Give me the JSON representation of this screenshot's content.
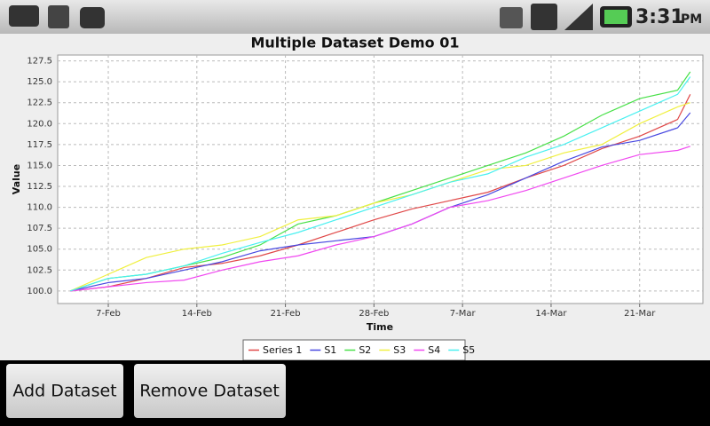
{
  "status_bar": {
    "time": "3:31",
    "period": "PM"
  },
  "chart_data": {
    "type": "line",
    "title": "Multiple Dataset Demo 01",
    "x_label": "Time",
    "y_label": "Value",
    "x": [
      "4-Feb",
      "7-Feb",
      "10-Feb",
      "13-Feb",
      "16-Feb",
      "19-Feb",
      "22-Feb",
      "25-Feb",
      "28-Feb",
      "3-Mar",
      "6-Mar",
      "9-Mar",
      "12-Mar",
      "15-Mar",
      "18-Mar",
      "21-Mar",
      "24-Mar",
      "25-Mar"
    ],
    "xlim": [
      "3-Feb",
      "26-Mar"
    ],
    "xticks": [
      "7-Feb",
      "14-Feb",
      "21-Feb",
      "28-Feb",
      "7-Mar",
      "14-Mar",
      "21-Mar"
    ],
    "ylim": [
      98.5,
      128.2
    ],
    "yticks": [
      {
        "value": 100,
        "label": "100.0"
      },
      102.5,
      {
        "value": 105,
        "label": "105.0"
      },
      107.5,
      {
        "value": 110,
        "label": "110.0"
      },
      112.5,
      {
        "value": 115,
        "label": "115.0"
      },
      117.5,
      {
        "value": 120,
        "label": "120.0"
      },
      122.5,
      {
        "value": 125,
        "label": "125.0"
      },
      127.5
    ],
    "grid": true,
    "series": [
      {
        "name": "Series 1",
        "color": "#e04848",
        "values": [
          100,
          100.5,
          101.5,
          102.8,
          103.3,
          104.2,
          105.5,
          107,
          108.5,
          109.8,
          110.8,
          111.8,
          113.5,
          115,
          117,
          118.5,
          120.5,
          123.5
        ]
      },
      {
        "name": "S1",
        "color": "#4848e0",
        "values": [
          100,
          101,
          101.5,
          102.5,
          103.5,
          104.8,
          105.5,
          106,
          106.5,
          108,
          110,
          111.5,
          113.5,
          115.5,
          117.2,
          118,
          119.5,
          121.3
        ]
      },
      {
        "name": "S2",
        "color": "#48e048",
        "values": [
          100,
          101.5,
          102,
          103,
          104,
          105.5,
          108,
          109,
          110.5,
          112,
          113.5,
          115,
          116.5,
          118.5,
          121,
          123,
          124,
          126.2
        ]
      },
      {
        "name": "S3",
        "color": "#f0f040",
        "values": [
          100,
          102,
          104,
          105,
          105.5,
          106.5,
          108.5,
          109,
          110.5,
          111.5,
          113,
          114.5,
          115,
          116.5,
          117.5,
          120,
          122,
          122.5
        ]
      },
      {
        "name": "S4",
        "color": "#f048f0",
        "values": [
          100,
          100.5,
          101,
          101.3,
          102.5,
          103.5,
          104.2,
          105.5,
          106.5,
          108,
          110,
          110.8,
          112,
          113.5,
          115,
          116.3,
          116.8,
          117.3
        ]
      },
      {
        "name": "S5",
        "color": "#48f0f0",
        "values": [
          100,
          101.5,
          102,
          103,
          104.5,
          105.8,
          107,
          108.5,
          110,
          111.5,
          113,
          114,
          116,
          117.5,
          119.5,
          121.5,
          123.5,
          125.6
        ]
      }
    ]
  },
  "buttons": [
    "Add Dataset",
    "Remove Dataset"
  ]
}
